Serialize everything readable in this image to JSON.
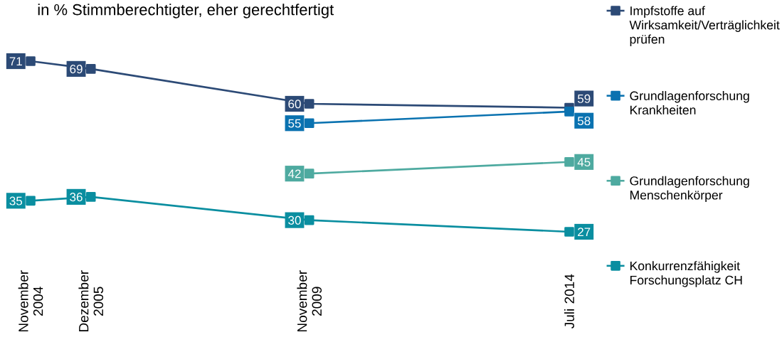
{
  "chart_data": {
    "type": "line",
    "title": "in % Stimmberechtigter, eher gerechtfertigt",
    "x": [
      "2004-11",
      "2005-12",
      "2009-11",
      "2014-07"
    ],
    "xlim": [
      "2004-11",
      "2014-07"
    ],
    "xticks": [
      {
        "value": "2004-11",
        "label": "November 2004"
      },
      {
        "value": "2005-12",
        "label": "Dezember 2005"
      },
      {
        "value": "2009-11",
        "label": "November 2009"
      },
      {
        "value": "2014-07",
        "label": "Juli 2014"
      }
    ],
    "series": [
      {
        "name": "Impfstoffe auf Wirksamkeit/Verträglichkeit prüfen",
        "color": "#2c4a76",
        "values": [
          71,
          69,
          60,
          59
        ]
      },
      {
        "name": "Grundlagenforschung Krankheiten",
        "color": "#0a72b0",
        "values": [
          null,
          null,
          55,
          58
        ]
      },
      {
        "name": "Grundlagenforschung Menschenkörper",
        "color": "#4eaaa0",
        "values": [
          null,
          null,
          42,
          45
        ]
      },
      {
        "name": "Konkurrenzfähigkeit Forschungsplatz CH",
        "color": "#0a8ea0",
        "values": [
          35,
          36,
          30,
          27
        ]
      }
    ],
    "data_labels": true,
    "legend": "right",
    "marker": "square",
    "line_style": "solid",
    "tick_labels": "x"
  }
}
